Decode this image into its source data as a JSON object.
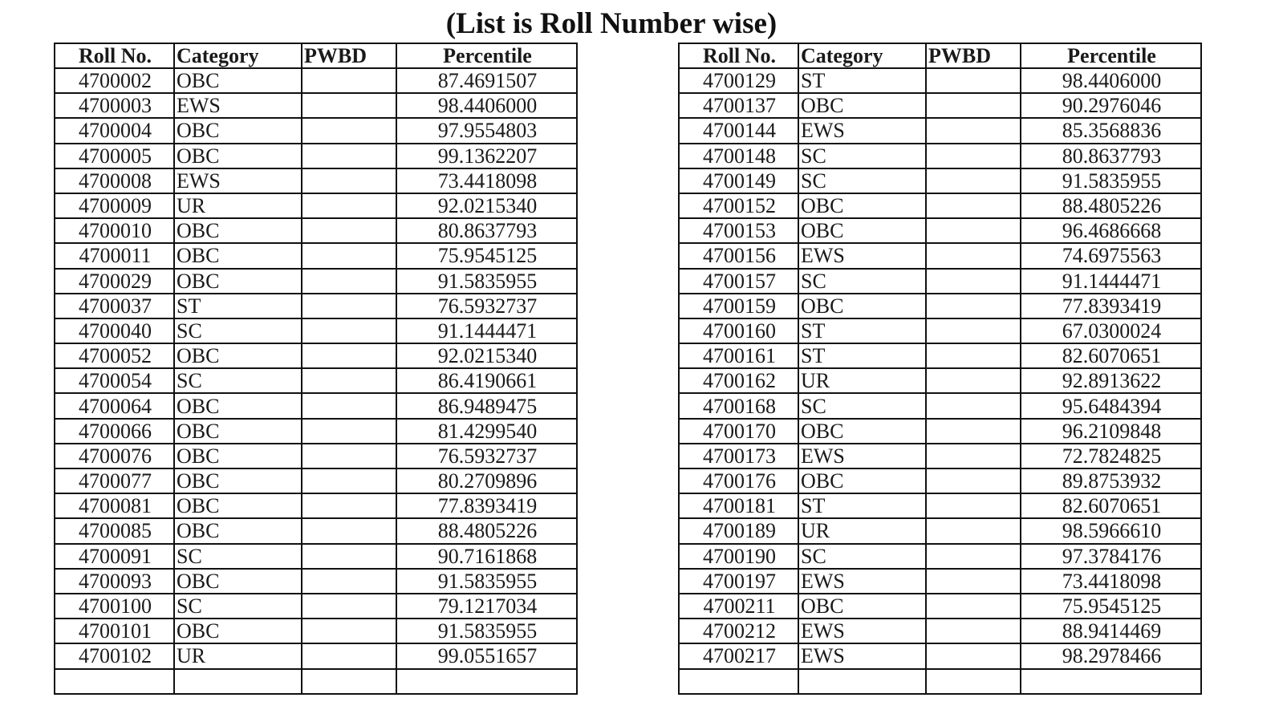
{
  "title": "(List is Roll Number wise)",
  "columns": [
    "Roll No.",
    "Category",
    "PWBD",
    "Percentile"
  ],
  "left_table": [
    {
      "roll": "4700002",
      "category": "OBC",
      "pwbd": "",
      "percentile": "87.4691507"
    },
    {
      "roll": "4700003",
      "category": "EWS",
      "pwbd": "",
      "percentile": "98.4406000"
    },
    {
      "roll": "4700004",
      "category": "OBC",
      "pwbd": "",
      "percentile": "97.9554803"
    },
    {
      "roll": "4700005",
      "category": "OBC",
      "pwbd": "",
      "percentile": "99.1362207"
    },
    {
      "roll": "4700008",
      "category": "EWS",
      "pwbd": "",
      "percentile": "73.4418098"
    },
    {
      "roll": "4700009",
      "category": "UR",
      "pwbd": "",
      "percentile": "92.0215340"
    },
    {
      "roll": "4700010",
      "category": "OBC",
      "pwbd": "",
      "percentile": "80.8637793"
    },
    {
      "roll": "4700011",
      "category": "OBC",
      "pwbd": "",
      "percentile": "75.9545125"
    },
    {
      "roll": "4700029",
      "category": "OBC",
      "pwbd": "",
      "percentile": "91.5835955"
    },
    {
      "roll": "4700037",
      "category": "ST",
      "pwbd": "",
      "percentile": "76.5932737"
    },
    {
      "roll": "4700040",
      "category": "SC",
      "pwbd": "",
      "percentile": "91.1444471"
    },
    {
      "roll": "4700052",
      "category": "OBC",
      "pwbd": "",
      "percentile": "92.0215340"
    },
    {
      "roll": "4700054",
      "category": "SC",
      "pwbd": "",
      "percentile": "86.4190661"
    },
    {
      "roll": "4700064",
      "category": "OBC",
      "pwbd": "",
      "percentile": "86.9489475"
    },
    {
      "roll": "4700066",
      "category": "OBC",
      "pwbd": "",
      "percentile": "81.4299540"
    },
    {
      "roll": "4700076",
      "category": "OBC",
      "pwbd": "",
      "percentile": "76.5932737"
    },
    {
      "roll": "4700077",
      "category": "OBC",
      "pwbd": "",
      "percentile": "80.2709896"
    },
    {
      "roll": "4700081",
      "category": "OBC",
      "pwbd": "",
      "percentile": "77.8393419"
    },
    {
      "roll": "4700085",
      "category": "OBC",
      "pwbd": "",
      "percentile": "88.4805226"
    },
    {
      "roll": "4700091",
      "category": "SC",
      "pwbd": "",
      "percentile": "90.7161868"
    },
    {
      "roll": "4700093",
      "category": "OBC",
      "pwbd": "",
      "percentile": "91.5835955"
    },
    {
      "roll": "4700100",
      "category": "SC",
      "pwbd": "",
      "percentile": "79.1217034"
    },
    {
      "roll": "4700101",
      "category": "OBC",
      "pwbd": "",
      "percentile": "91.5835955"
    },
    {
      "roll": "4700102",
      "category": "UR",
      "pwbd": "",
      "percentile": "99.0551657"
    }
  ],
  "right_table": [
    {
      "roll": "4700129",
      "category": "ST",
      "pwbd": "",
      "percentile": "98.4406000"
    },
    {
      "roll": "4700137",
      "category": "OBC",
      "pwbd": "",
      "percentile": "90.2976046"
    },
    {
      "roll": "4700144",
      "category": "EWS",
      "pwbd": "",
      "percentile": "85.3568836"
    },
    {
      "roll": "4700148",
      "category": "SC",
      "pwbd": "",
      "percentile": "80.8637793"
    },
    {
      "roll": "4700149",
      "category": "SC",
      "pwbd": "",
      "percentile": "91.5835955"
    },
    {
      "roll": "4700152",
      "category": "OBC",
      "pwbd": "",
      "percentile": "88.4805226"
    },
    {
      "roll": "4700153",
      "category": "OBC",
      "pwbd": "",
      "percentile": "96.4686668"
    },
    {
      "roll": "4700156",
      "category": "EWS",
      "pwbd": "",
      "percentile": "74.6975563"
    },
    {
      "roll": "4700157",
      "category": "SC",
      "pwbd": "",
      "percentile": "91.1444471"
    },
    {
      "roll": "4700159",
      "category": "OBC",
      "pwbd": "",
      "percentile": "77.8393419"
    },
    {
      "roll": "4700160",
      "category": "ST",
      "pwbd": "",
      "percentile": "67.0300024"
    },
    {
      "roll": "4700161",
      "category": "ST",
      "pwbd": "",
      "percentile": "82.6070651"
    },
    {
      "roll": "4700162",
      "category": "UR",
      "pwbd": "",
      "percentile": "92.8913622"
    },
    {
      "roll": "4700168",
      "category": "SC",
      "pwbd": "",
      "percentile": "95.6484394"
    },
    {
      "roll": "4700170",
      "category": "OBC",
      "pwbd": "",
      "percentile": "96.2109848"
    },
    {
      "roll": "4700173",
      "category": "EWS",
      "pwbd": "",
      "percentile": "72.7824825"
    },
    {
      "roll": "4700176",
      "category": "OBC",
      "pwbd": "",
      "percentile": "89.8753932"
    },
    {
      "roll": "4700181",
      "category": "ST",
      "pwbd": "",
      "percentile": "82.6070651"
    },
    {
      "roll": "4700189",
      "category": "UR",
      "pwbd": "",
      "percentile": "98.5966610"
    },
    {
      "roll": "4700190",
      "category": "SC",
      "pwbd": "",
      "percentile": "97.3784176"
    },
    {
      "roll": "4700197",
      "category": "EWS",
      "pwbd": "",
      "percentile": "73.4418098"
    },
    {
      "roll": "4700211",
      "category": "OBC",
      "pwbd": "",
      "percentile": "75.9545125"
    },
    {
      "roll": "4700212",
      "category": "EWS",
      "pwbd": "",
      "percentile": "88.9414469"
    },
    {
      "roll": "4700217",
      "category": "EWS",
      "pwbd": "",
      "percentile": "98.2978466"
    }
  ]
}
